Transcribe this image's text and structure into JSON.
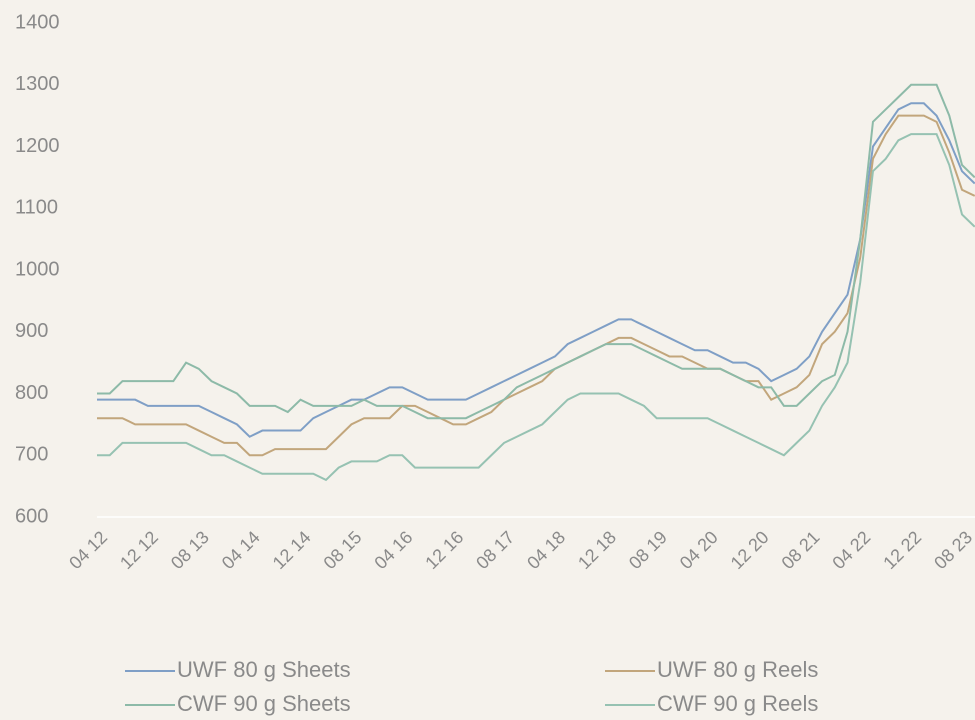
{
  "chart_data": {
    "type": "line",
    "categories": [
      "04 12",
      null,
      null,
      null,
      "12 12",
      null,
      null,
      null,
      "08 13",
      null,
      null,
      null,
      "04 14",
      null,
      null,
      null,
      "12 14",
      null,
      null,
      null,
      "08 15",
      null,
      null,
      null,
      "04 16",
      null,
      null,
      null,
      "12 16",
      null,
      null,
      null,
      "08 17",
      null,
      null,
      null,
      "04 18",
      null,
      null,
      null,
      "12 18",
      null,
      null,
      null,
      "08 19",
      null,
      null,
      null,
      "04 20",
      null,
      null,
      null,
      "12 20",
      null,
      null,
      null,
      "08 21",
      null,
      null,
      null,
      "04 22",
      null,
      null,
      null,
      "12 22",
      null,
      null,
      null,
      "08 23",
      null
    ],
    "series": [
      {
        "name": "UWF 80 g Sheets",
        "color": "#7f9fc6",
        "values": [
          790,
          790,
          790,
          790,
          780,
          780,
          780,
          780,
          780,
          770,
          760,
          750,
          730,
          740,
          740,
          740,
          740,
          760,
          770,
          780,
          790,
          790,
          800,
          810,
          810,
          800,
          790,
          790,
          790,
          790,
          800,
          810,
          820,
          830,
          840,
          850,
          860,
          880,
          890,
          900,
          910,
          920,
          920,
          910,
          900,
          890,
          880,
          870,
          870,
          860,
          850,
          850,
          840,
          820,
          830,
          840,
          860,
          900,
          930,
          960,
          1050,
          1200,
          1230,
          1260,
          1270,
          1270,
          1250,
          1210,
          1160,
          1140
        ]
      },
      {
        "name": "UWF 80 g Reels",
        "color": "#c2a67c",
        "values": [
          760,
          760,
          760,
          750,
          750,
          750,
          750,
          750,
          740,
          730,
          720,
          720,
          700,
          700,
          710,
          710,
          710,
          710,
          710,
          730,
          750,
          760,
          760,
          760,
          780,
          780,
          770,
          760,
          750,
          750,
          760,
          770,
          790,
          800,
          810,
          820,
          840,
          850,
          860,
          870,
          880,
          890,
          890,
          880,
          870,
          860,
          860,
          850,
          840,
          840,
          830,
          820,
          820,
          790,
          800,
          810,
          830,
          880,
          900,
          930,
          1020,
          1180,
          1220,
          1250,
          1250,
          1250,
          1240,
          1190,
          1130,
          1120
        ]
      },
      {
        "name": "CWF 90 g Sheets",
        "color": "#8dbaa8",
        "values": [
          800,
          800,
          820,
          820,
          820,
          820,
          820,
          850,
          840,
          820,
          810,
          800,
          780,
          780,
          780,
          770,
          790,
          780,
          780,
          780,
          780,
          790,
          780,
          780,
          780,
          770,
          760,
          760,
          760,
          760,
          770,
          780,
          790,
          810,
          820,
          830,
          840,
          850,
          860,
          870,
          880,
          880,
          880,
          870,
          860,
          850,
          840,
          840,
          840,
          840,
          830,
          820,
          810,
          810,
          780,
          780,
          800,
          820,
          830,
          900,
          1050,
          1240,
          1260,
          1280,
          1300,
          1300,
          1300,
          1250,
          1170,
          1150
        ]
      },
      {
        "name": "CWF 90 g Reels",
        "color": "#96c2b2",
        "values": [
          700,
          700,
          720,
          720,
          720,
          720,
          720,
          720,
          710,
          700,
          700,
          690,
          680,
          670,
          670,
          670,
          670,
          670,
          660,
          680,
          690,
          690,
          690,
          700,
          700,
          680,
          680,
          680,
          680,
          680,
          680,
          700,
          720,
          730,
          740,
          750,
          770,
          790,
          800,
          800,
          800,
          800,
          790,
          780,
          760,
          760,
          760,
          760,
          760,
          750,
          740,
          730,
          720,
          710,
          700,
          720,
          740,
          780,
          810,
          850,
          980,
          1160,
          1180,
          1210,
          1220,
          1220,
          1220,
          1170,
          1090,
          1070
        ]
      }
    ],
    "ylim": [
      600,
      1400
    ],
    "yticks": [
      600,
      700,
      800,
      900,
      1000,
      1100,
      1200,
      1300,
      1400
    ],
    "grid": false,
    "legend": "bottom"
  }
}
